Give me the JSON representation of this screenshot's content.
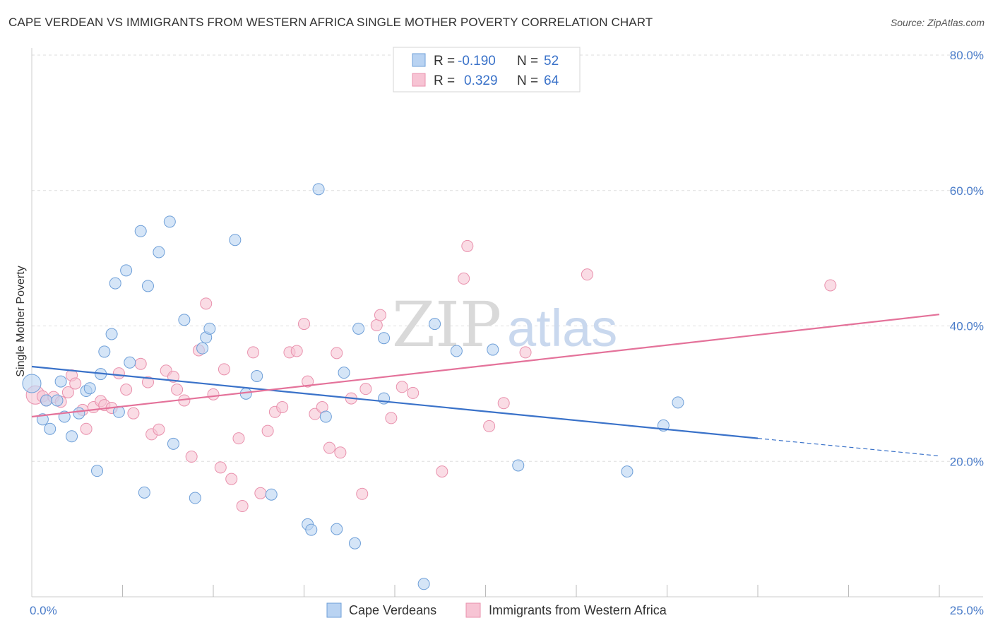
{
  "title": "CAPE VERDEAN VS IMMIGRANTS FROM WESTERN AFRICA SINGLE MOTHER POVERTY CORRELATION CHART",
  "source": "Source: ZipAtlas.com",
  "watermark": {
    "zip": "ZIP",
    "atlas": "atlas"
  },
  "colors": {
    "blue_fill": "#b9d3f2",
    "blue_stroke": "#6e9fd8",
    "blue_line": "#3a72c9",
    "pink_fill": "#f7c4d4",
    "pink_stroke": "#e991ad",
    "pink_line": "#e4729a",
    "tick_text": "#4a7cc9",
    "grid": "#dddddd"
  },
  "legend": {
    "rows": [
      {
        "r_label": "R =",
        "r_value": "-0.190",
        "n_label": "N =",
        "n_value": "52"
      },
      {
        "r_label": "R =",
        "r_value": "0.329",
        "n_label": "N =",
        "n_value": "64"
      }
    ]
  },
  "chart_data": {
    "type": "scatter",
    "title": "CAPE VERDEAN VS IMMIGRANTS FROM WESTERN AFRICA SINGLE MOTHER POVERTY CORRELATION CHART",
    "xlabel": "",
    "ylabel": "Single Mother Poverty",
    "xlim": [
      0,
      25
    ],
    "ylim": [
      0,
      80
    ],
    "x_tick_labels": [
      "0.0%",
      "25.0%"
    ],
    "y_ticks": [
      20,
      40,
      60,
      80
    ],
    "y_tick_labels": [
      "20.0%",
      "40.0%",
      "60.0%",
      "80.0%"
    ],
    "grid": true,
    "legend_position": "bottom",
    "series": [
      {
        "name": "Cape Verdeans",
        "color": "#6e9fd8",
        "points": [
          [
            0.0,
            31.5
          ],
          [
            0.3,
            26.2
          ],
          [
            0.4,
            29.0
          ],
          [
            0.5,
            24.8
          ],
          [
            0.7,
            29.0
          ],
          [
            0.8,
            31.8
          ],
          [
            0.9,
            26.6
          ],
          [
            1.1,
            23.7
          ],
          [
            1.3,
            27.1
          ],
          [
            1.5,
            30.4
          ],
          [
            1.6,
            30.8
          ],
          [
            1.8,
            18.6
          ],
          [
            1.9,
            32.9
          ],
          [
            2.0,
            36.2
          ],
          [
            2.2,
            38.8
          ],
          [
            2.3,
            46.3
          ],
          [
            2.4,
            27.3
          ],
          [
            2.6,
            48.2
          ],
          [
            2.7,
            34.6
          ],
          [
            3.0,
            54.0
          ],
          [
            3.1,
            15.4
          ],
          [
            3.2,
            45.9
          ],
          [
            3.5,
            50.9
          ],
          [
            3.8,
            55.4
          ],
          [
            3.9,
            22.6
          ],
          [
            4.2,
            40.9
          ],
          [
            4.5,
            14.6
          ],
          [
            4.7,
            36.7
          ],
          [
            4.8,
            38.3
          ],
          [
            4.9,
            39.6
          ],
          [
            5.6,
            52.7
          ],
          [
            5.9,
            30.0
          ],
          [
            6.2,
            32.6
          ],
          [
            6.6,
            15.1
          ],
          [
            7.6,
            10.7
          ],
          [
            7.7,
            9.9
          ],
          [
            7.9,
            60.2
          ],
          [
            8.1,
            26.6
          ],
          [
            8.4,
            10.0
          ],
          [
            8.6,
            33.1
          ],
          [
            8.9,
            7.9
          ],
          [
            9.0,
            39.6
          ],
          [
            9.7,
            38.2
          ],
          [
            9.7,
            29.3
          ],
          [
            10.8,
            1.9
          ],
          [
            11.1,
            40.3
          ],
          [
            11.7,
            36.3
          ],
          [
            12.7,
            36.5
          ],
          [
            13.4,
            19.4
          ],
          [
            16.4,
            18.5
          ],
          [
            17.4,
            25.3
          ],
          [
            17.8,
            28.7
          ]
        ]
      },
      {
        "name": "Immigrants from Western Africa",
        "color": "#e991ad",
        "points": [
          [
            0.1,
            29.8
          ],
          [
            0.3,
            29.6
          ],
          [
            0.4,
            29.0
          ],
          [
            0.6,
            29.5
          ],
          [
            0.8,
            28.8
          ],
          [
            1.0,
            30.2
          ],
          [
            1.1,
            32.7
          ],
          [
            1.2,
            31.5
          ],
          [
            1.4,
            27.6
          ],
          [
            1.5,
            24.8
          ],
          [
            1.7,
            28.0
          ],
          [
            1.9,
            28.9
          ],
          [
            2.0,
            28.3
          ],
          [
            2.2,
            27.9
          ],
          [
            2.4,
            33.0
          ],
          [
            2.6,
            30.6
          ],
          [
            2.8,
            27.1
          ],
          [
            3.0,
            34.4
          ],
          [
            3.2,
            31.7
          ],
          [
            3.3,
            24.0
          ],
          [
            3.5,
            24.7
          ],
          [
            3.7,
            33.4
          ],
          [
            3.9,
            32.5
          ],
          [
            4.0,
            30.6
          ],
          [
            4.2,
            29.0
          ],
          [
            4.4,
            20.7
          ],
          [
            4.6,
            36.4
          ],
          [
            4.8,
            43.3
          ],
          [
            5.0,
            29.9
          ],
          [
            5.2,
            19.1
          ],
          [
            5.3,
            33.6
          ],
          [
            5.5,
            17.4
          ],
          [
            5.7,
            23.4
          ],
          [
            5.8,
            13.4
          ],
          [
            6.1,
            36.1
          ],
          [
            6.3,
            15.3
          ],
          [
            6.5,
            24.5
          ],
          [
            6.7,
            27.3
          ],
          [
            6.9,
            28.0
          ],
          [
            7.1,
            36.1
          ],
          [
            7.3,
            36.3
          ],
          [
            7.5,
            40.3
          ],
          [
            7.6,
            31.8
          ],
          [
            7.8,
            27.0
          ],
          [
            8.0,
            28.0
          ],
          [
            8.2,
            22.0
          ],
          [
            8.4,
            36.0
          ],
          [
            8.5,
            21.3
          ],
          [
            8.8,
            29.3
          ],
          [
            9.1,
            15.2
          ],
          [
            9.2,
            30.7
          ],
          [
            9.5,
            40.1
          ],
          [
            9.6,
            41.6
          ],
          [
            9.9,
            26.4
          ],
          [
            10.2,
            31.0
          ],
          [
            10.5,
            30.1
          ],
          [
            11.3,
            18.5
          ],
          [
            11.9,
            47.0
          ],
          [
            12.0,
            51.8
          ],
          [
            12.6,
            25.2
          ],
          [
            13.0,
            28.6
          ],
          [
            13.6,
            36.1
          ],
          [
            15.3,
            47.6
          ],
          [
            22.0,
            46.0
          ]
        ]
      }
    ],
    "trend_lines": [
      {
        "series": "Cape Verdeans",
        "x": [
          0,
          20,
          25
        ],
        "y": [
          34.0,
          23.4,
          20.8
        ],
        "dashed_from_x": 20
      },
      {
        "series": "Immigrants from Western Africa",
        "x": [
          0,
          25
        ],
        "y": [
          26.6,
          41.7
        ]
      }
    ]
  }
}
